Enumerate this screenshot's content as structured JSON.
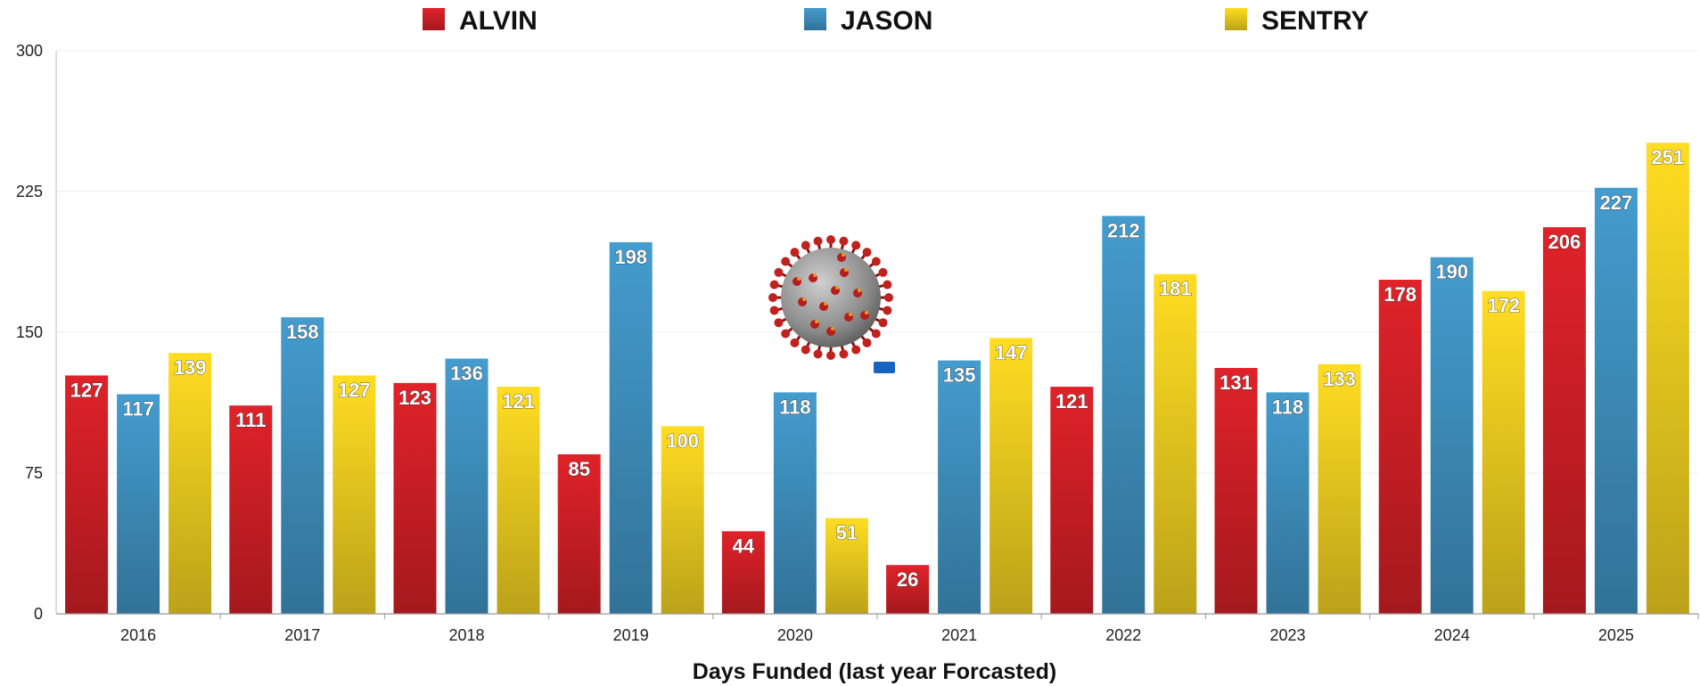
{
  "chart_data": {
    "type": "bar",
    "categories": [
      "2016",
      "2017",
      "2018",
      "2019",
      "2020",
      "2021",
      "2022",
      "2023",
      "2024",
      "2025"
    ],
    "series": [
      {
        "name": "ALVIN",
        "color": "#c81e25",
        "values": [
          127,
          111,
          123,
          85,
          44,
          26,
          121,
          131,
          178,
          206
        ]
      },
      {
        "name": "JASON",
        "color": "#3d8bb8",
        "values": [
          117,
          158,
          136,
          198,
          118,
          135,
          212,
          118,
          190,
          227
        ]
      },
      {
        "name": "SENTRY",
        "color": "#e4c51e",
        "values": [
          139,
          127,
          121,
          100,
          51,
          147,
          181,
          133,
          172,
          251
        ]
      }
    ],
    "xlabel": "Days Funded (last year Forcasted)",
    "ylabel": "",
    "ylim": [
      0,
      300
    ],
    "yticks": [
      "0",
      "75",
      "150",
      "225",
      "300"
    ],
    "grid": true,
    "legend": "top",
    "data_labels": true,
    "annotation_icon": "coronavirus-image"
  }
}
